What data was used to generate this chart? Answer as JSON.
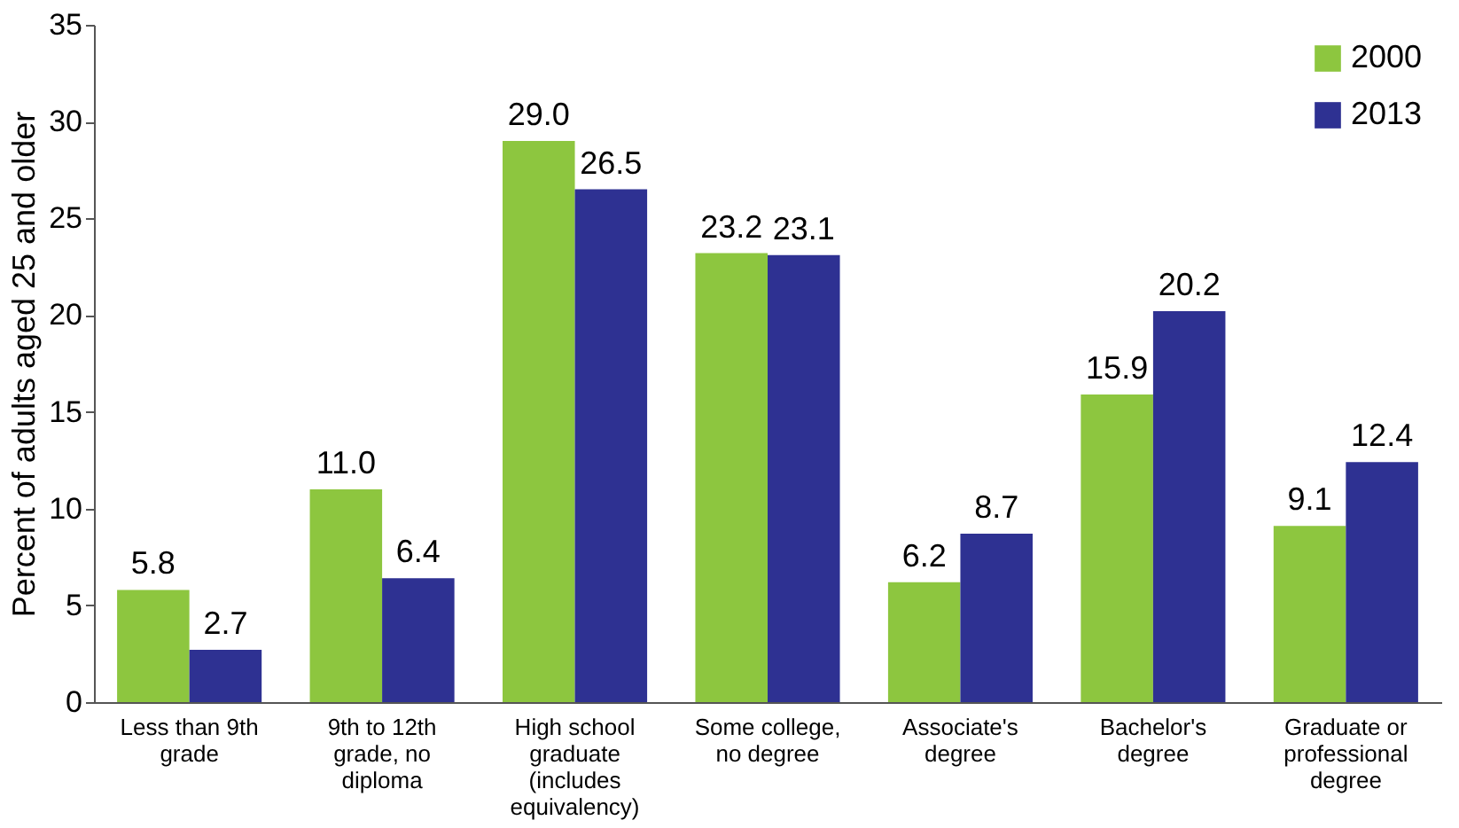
{
  "chart_data": {
    "type": "bar",
    "ylabel": "Percent of adults aged 25 and older",
    "categories": [
      "Less than 9th grade",
      "9th to 12th grade, no diploma",
      "High school graduate (includes equivalency)",
      "Some college, no degree",
      "Associate's degree",
      "Bachelor's degree",
      "Graduate or professional degree"
    ],
    "series": [
      {
        "name": "2000",
        "color": "#8dc63f",
        "values": [
          5.8,
          11.0,
          29.0,
          23.2,
          6.2,
          15.9,
          9.1
        ],
        "value_labels": [
          "5.8",
          "11.0",
          "29.0",
          "23.2",
          "6.2",
          "15.9",
          "9.1"
        ]
      },
      {
        "name": "2013",
        "color": "#2e3192",
        "values": [
          2.7,
          6.4,
          26.5,
          23.1,
          8.7,
          20.2,
          12.4
        ],
        "value_labels": [
          "2.7",
          "6.4",
          "26.5",
          "23.1",
          "8.7",
          "20.2",
          "12.4"
        ]
      }
    ],
    "ylim": [
      0,
      35
    ],
    "yticks": [
      0,
      5,
      10,
      15,
      20,
      25,
      30,
      35
    ],
    "grid": false,
    "legend": "top right"
  }
}
